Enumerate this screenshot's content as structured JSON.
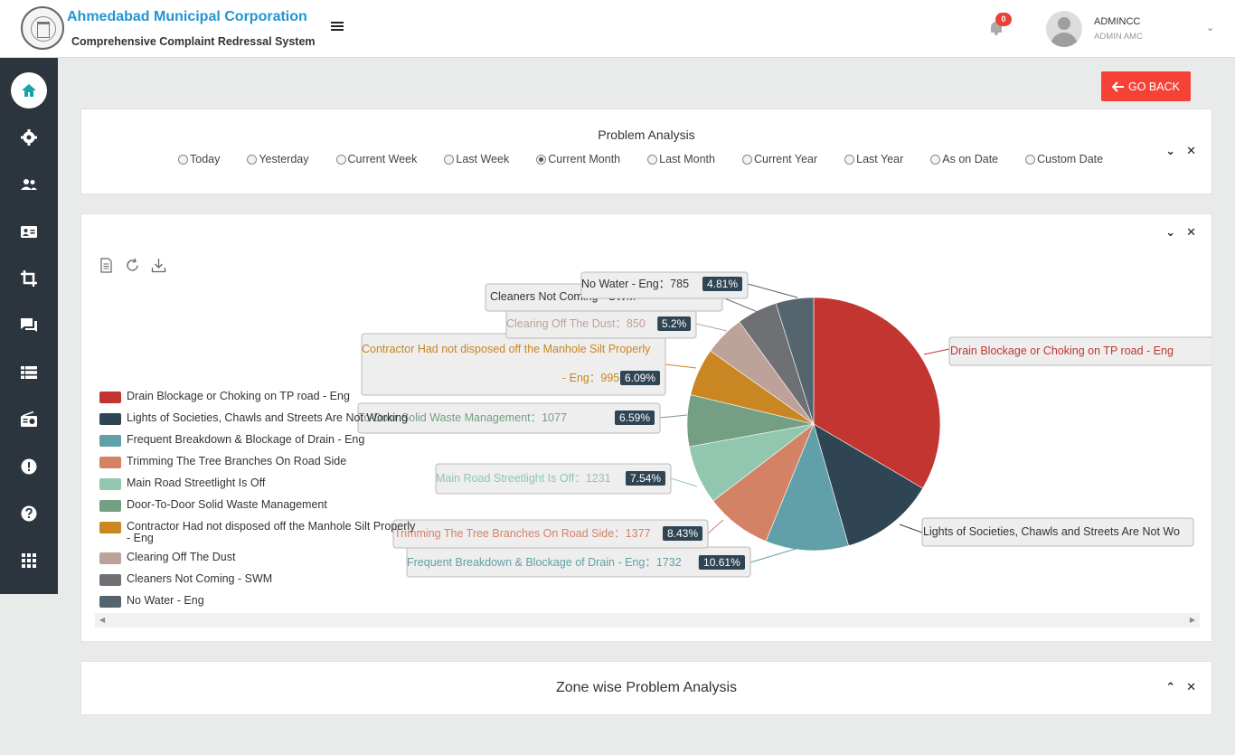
{
  "header": {
    "org_name": "Ahmedabad Municipal Corporation",
    "system_name": "Comprehensive Complaint Redressal System",
    "notifications_count": "0",
    "user_name": "ADMINCC",
    "user_role": "ADMIN AMC"
  },
  "sidebar": {
    "items": [
      {
        "name": "home",
        "active": true
      },
      {
        "name": "gear"
      },
      {
        "name": "users"
      },
      {
        "name": "contact-card"
      },
      {
        "name": "crop"
      },
      {
        "name": "chat"
      },
      {
        "name": "list"
      },
      {
        "name": "radio"
      },
      {
        "name": "alert"
      },
      {
        "name": "help"
      },
      {
        "name": "grid"
      }
    ]
  },
  "actions": {
    "go_back": "GO BACK"
  },
  "problem_analysis": {
    "title": "Problem Analysis",
    "filters": [
      {
        "label": "Today",
        "checked": false
      },
      {
        "label": "Yesterday",
        "checked": false
      },
      {
        "label": "Current Week",
        "checked": false
      },
      {
        "label": "Last Week",
        "checked": false
      },
      {
        "label": "Current Month",
        "checked": true
      },
      {
        "label": "Last Month",
        "checked": false
      },
      {
        "label": "Current Year",
        "checked": false
      },
      {
        "label": "Last Year",
        "checked": false
      },
      {
        "label": "As on Date",
        "checked": false
      },
      {
        "label": "Custom Date",
        "checked": false
      }
    ]
  },
  "zone_analysis": {
    "title": "Zone wise Problem Analysis"
  },
  "chart_data": {
    "type": "pie",
    "title": "",
    "series": [
      {
        "name": "Drain Blockage or Choking on TP road - Eng",
        "label": "Drain Blockage or Choking on TP road - Eng",
        "value": null,
        "percent": null,
        "color": "#c23531"
      },
      {
        "name": "Lights of Societies, Chawls and Streets Are Not Working",
        "label": "Lights of Societies, Chawls and Streets Are Not Wo",
        "value": null,
        "percent": null,
        "color": "#2f4554"
      },
      {
        "name": "Frequent Breakdown & Blockage of Drain - Eng",
        "label": "Frequent Breakdown & Blockage of Drain - Eng",
        "value": 1732,
        "percent": "10.61%",
        "color": "#61a0a8"
      },
      {
        "name": "Trimming The Tree Branches On Road Side",
        "label": "Trimming The Tree Branches On Road Side",
        "value": 1377,
        "percent": "8.43%",
        "color": "#d48265"
      },
      {
        "name": "Main Road Streetlight Is Off",
        "label": "Main Road Streetlight Is Off",
        "value": 1231,
        "percent": "7.54%",
        "color": "#91c7ae"
      },
      {
        "name": "Door-To-Door Solid Waste Management",
        "label": "To-Door Solid Waste Management",
        "value": 1077,
        "percent": "6.59%",
        "color": "#749f83"
      },
      {
        "name": "Contractor Had not disposed off the Manhole Silt Properly - Eng",
        "label_line1": "Contractor Had not disposed off the Manhole Silt Properly",
        "label_line2": "- Eng",
        "value": 995,
        "percent": "6.09%",
        "color": "#ca8622"
      },
      {
        "name": "Clearing Off The Dust",
        "label": "Clearing Off The Dust",
        "value": 850,
        "percent": "5.2%",
        "color": "#bda29a"
      },
      {
        "name": "Cleaners Not Coming - SWM",
        "label": "Cleaners Not Coming - SWM",
        "value": null,
        "percent": null,
        "color": "#6e7074"
      },
      {
        "name": "No Water - Eng",
        "label": "No Water - Eng",
        "value": 785,
        "percent": "4.81%",
        "color": "#546570"
      }
    ],
    "legend": {
      "position": "left",
      "items": [
        {
          "line1": "Drain Blockage or Choking on TP road - Eng",
          "line2": ""
        },
        {
          "line1": "Lights of Societies, Chawls and Streets Are Not Working",
          "line2": ""
        },
        {
          "line1": "Frequent Breakdown & Blockage of Drain - Eng",
          "line2": ""
        },
        {
          "line1": "Trimming The Tree Branches On Road Side",
          "line2": ""
        },
        {
          "line1": "Main Road Streetlight Is Off",
          "line2": ""
        },
        {
          "line1": "Door-To-Door Solid Waste Management",
          "line2": ""
        },
        {
          "line1": "Contractor Had not disposed off the Manhole Silt Properly",
          "line2": "- Eng"
        },
        {
          "line1": "Clearing Off The Dust",
          "line2": ""
        },
        {
          "line1": "Cleaners Not Coming - SWM",
          "line2": ""
        },
        {
          "line1": "No Water - Eng",
          "line2": ""
        }
      ]
    }
  }
}
